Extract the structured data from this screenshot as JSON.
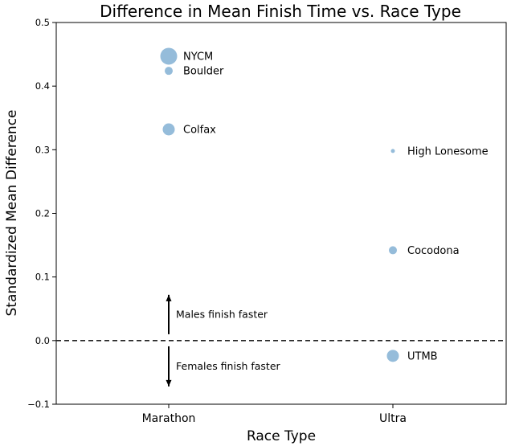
{
  "chart_data": {
    "type": "scatter",
    "title": "Difference in Mean Finish Time vs. Race Type",
    "xlabel": "Race Type",
    "ylabel": "Standardized Mean Difference",
    "categories": [
      "Marathon",
      "Ultra"
    ],
    "ylim": [
      -0.1,
      0.5
    ],
    "yticks": [
      "−0.1",
      "0.0",
      "0.1",
      "0.2",
      "0.3",
      "0.4",
      "0.5"
    ],
    "reference_line": {
      "y": 0.0,
      "style": "dashed"
    },
    "marker_color": "#8fb8d8",
    "points": [
      {
        "category": "Marathon",
        "label": "NYCM",
        "y": 0.447,
        "size": "large"
      },
      {
        "category": "Marathon",
        "label": "Boulder",
        "y": 0.424,
        "size": "small"
      },
      {
        "category": "Marathon",
        "label": "Colfax",
        "y": 0.332,
        "size": "medium"
      },
      {
        "category": "Ultra",
        "label": "High Lonesome",
        "y": 0.298,
        "size": "tiny"
      },
      {
        "category": "Ultra",
        "label": "Cocodona",
        "y": 0.142,
        "size": "small"
      },
      {
        "category": "Ultra",
        "label": "UTMB",
        "y": -0.024,
        "size": "medium"
      }
    ],
    "annotations": [
      {
        "text": "Males finish faster",
        "direction": "up",
        "y_from": 0.01,
        "y_to": 0.072
      },
      {
        "text": "Females finish faster",
        "direction": "down",
        "y_from": -0.009,
        "y_to": -0.072
      }
    ],
    "grid": false,
    "legend": "none"
  }
}
